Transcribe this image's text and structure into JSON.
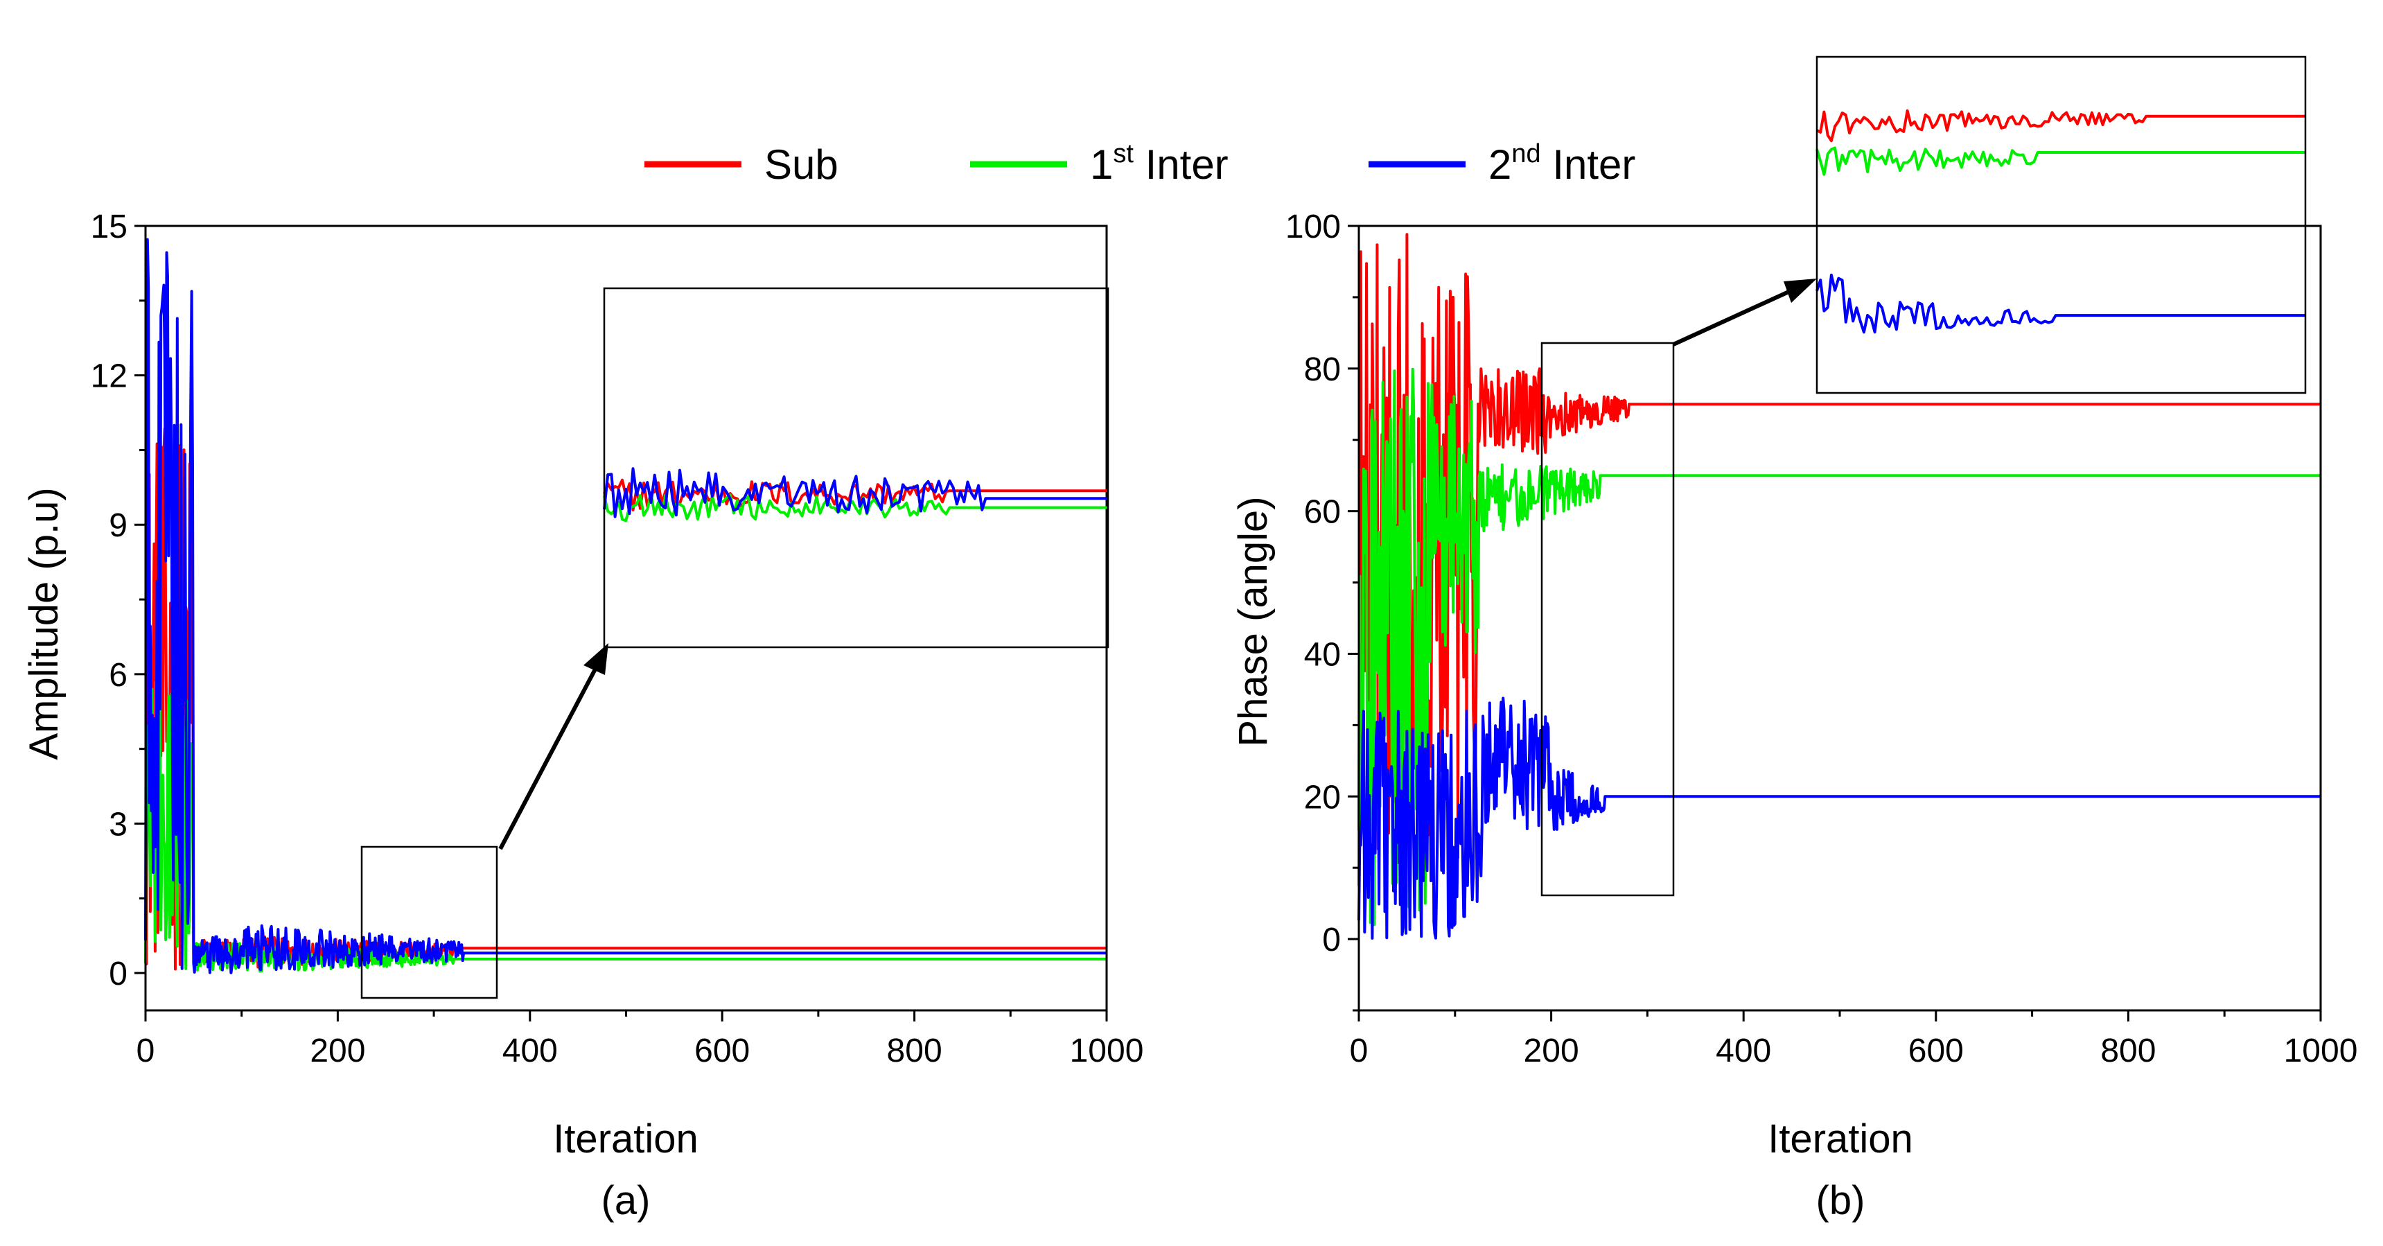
{
  "legend": {
    "entries": [
      {
        "name": "Sub",
        "base": "Sub",
        "sup": "",
        "suffix": "",
        "color": "#ff0000"
      },
      {
        "name": "1st Inter",
        "base": "1",
        "sup": "st",
        "suffix": " Inter",
        "color": "#00ee00"
      },
      {
        "name": "2nd Inter",
        "base": "2",
        "sup": "nd",
        "suffix": " Inter",
        "color": "#0000ff"
      }
    ]
  },
  "chart_data": [
    {
      "type": "line",
      "id": "a",
      "caption": "(a)",
      "xlabel": "Iteration",
      "ylabel": "Amplitude (p.u)",
      "xlim": [
        0,
        1000
      ],
      "ylim": [
        -0.75,
        15
      ],
      "xticks": [
        0,
        200,
        400,
        600,
        800,
        1000
      ],
      "yticks": [
        0,
        3,
        6,
        9,
        12,
        15
      ],
      "xtick_labels": [
        "0",
        "200",
        "400",
        "600",
        "800",
        "1000"
      ],
      "ytick_labels": [
        "0",
        "3",
        "6",
        "9",
        "12",
        "15"
      ],
      "series": [
        {
          "name": "Sub",
          "color": "#ff0000",
          "final_value": 0.5,
          "converge_at": 320,
          "phases": [
            [
              0,
              50,
              0.0,
              11.0
            ],
            [
              50,
              100,
              0.15,
              0.7
            ],
            [
              100,
              320,
              0.1,
              0.75
            ]
          ]
        },
        {
          "name": "1st Inter",
          "color": "#00ee00",
          "final_value": 0.28,
          "converge_at": 320,
          "phases": [
            [
              0,
              50,
              0.0,
              6.0
            ],
            [
              50,
              100,
              0.05,
              0.6
            ],
            [
              100,
              320,
              0.0,
              0.6
            ]
          ]
        },
        {
          "name": "2nd Inter",
          "color": "#0000ff",
          "final_value": 0.4,
          "converge_at": 330,
          "phases": [
            [
              0,
              50,
              0.0,
              14.8
            ],
            [
              50,
              100,
              0.0,
              0.75
            ],
            [
              100,
              330,
              0.0,
              1.0
            ]
          ]
        }
      ],
      "zoom": {
        "x_range": [
          225,
          365
        ],
        "y_range": [
          -0.7,
          2.3
        ]
      }
    },
    {
      "type": "line",
      "id": "b",
      "caption": "(b)",
      "xlabel": "Iteration",
      "ylabel": "Phase (angle)",
      "xlim": [
        0,
        1000
      ],
      "ylim": [
        -10,
        100
      ],
      "xticks": [
        0,
        200,
        400,
        600,
        800,
        1000
      ],
      "yticks": [
        0,
        20,
        40,
        60,
        80,
        100
      ],
      "xtick_labels": [
        "0",
        "200",
        "400",
        "600",
        "800",
        "1000"
      ],
      "ytick_labels": [
        "0",
        "20",
        "40",
        "60",
        "80",
        "100"
      ],
      "series": [
        {
          "name": "Sub",
          "color": "#ff0000",
          "final_value": 75,
          "converge_at": 280,
          "phases": [
            [
              0,
              125,
              10,
              100
            ],
            [
              125,
              200,
              68,
              80
            ],
            [
              200,
              280,
              70,
              77
            ]
          ]
        },
        {
          "name": "1st Inter",
          "color": "#00ee00",
          "final_value": 65,
          "converge_at": 250,
          "phases": [
            [
              0,
              75,
              2,
              80
            ],
            [
              75,
              125,
              40,
              80
            ],
            [
              125,
              250,
              56,
              67
            ]
          ]
        },
        {
          "name": "2nd Inter",
          "color": "#0000ff",
          "final_value": 20,
          "converge_at": 255,
          "phases": [
            [
              0,
              130,
              0,
              32
            ],
            [
              130,
              200,
              15,
              34
            ],
            [
              200,
              255,
              15,
              25
            ]
          ]
        }
      ],
      "zoom": {
        "x_range": [
          190,
          325
        ],
        "y_range": [
          6,
          84
        ]
      }
    }
  ]
}
